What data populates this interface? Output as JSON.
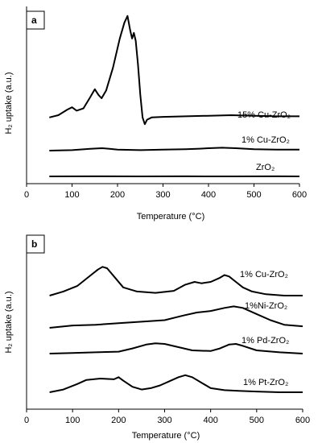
{
  "chart_data": [
    {
      "type": "line",
      "panel_label": "a",
      "xlabel": "Temperature (°C)",
      "ylabel": "H₂ uptake (a.u.)",
      "xlim": [
        0,
        600
      ],
      "xticks": [
        0,
        100,
        200,
        300,
        400,
        500,
        600
      ],
      "grid": false,
      "legend": "inline labels at right end of each trace",
      "series": [
        {
          "name": "15% Cu-ZrO₂",
          "x": [
            50,
            70,
            90,
            100,
            110,
            125,
            140,
            150,
            158,
            165,
            175,
            190,
            205,
            215,
            222,
            228,
            232,
            236,
            240,
            245,
            250,
            255,
            260,
            265,
            275,
            300,
            350,
            400,
            450,
            500,
            550,
            600
          ],
          "y": [
            0.08,
            0.1,
            0.15,
            0.17,
            0.14,
            0.16,
            0.26,
            0.33,
            0.28,
            0.25,
            0.32,
            0.52,
            0.78,
            0.92,
            0.98,
            0.85,
            0.78,
            0.83,
            0.76,
            0.55,
            0.28,
            0.08,
            0.02,
            0.06,
            0.08,
            0.085,
            0.09,
            0.095,
            0.1,
            0.095,
            0.09,
            0.09
          ]
        },
        {
          "name": "1% Cu-ZrO₂",
          "x": [
            50,
            100,
            140,
            165,
            180,
            200,
            250,
            300,
            350,
            380,
            400,
            430,
            460,
            500,
            550,
            600
          ],
          "y": [
            0.0,
            0.005,
            0.018,
            0.025,
            0.02,
            0.01,
            0.005,
            0.01,
            0.015,
            0.02,
            0.025,
            0.03,
            0.025,
            0.015,
            0.01,
            0.01
          ]
        },
        {
          "name": "ZrO₂",
          "x": [
            50,
            150,
            250,
            350,
            450,
            550,
            600
          ],
          "y": [
            0.0,
            0.001,
            0.0,
            0.001,
            0.0,
            0.001,
            0.0
          ]
        }
      ]
    },
    {
      "type": "line",
      "panel_label": "b",
      "xlabel": "Temperature (°C)",
      "ylabel": "H₂ uptake (a.u.)",
      "xlim": [
        0,
        600
      ],
      "xticks": [
        0,
        100,
        200,
        300,
        400,
        500,
        600
      ],
      "grid": false,
      "legend": "inline labels at right end of each trace",
      "series": [
        {
          "name": "1% Cu-ZrO₂",
          "x": [
            50,
            80,
            110,
            140,
            155,
            165,
            175,
            190,
            210,
            240,
            280,
            320,
            345,
            365,
            380,
            400,
            420,
            430,
            440,
            455,
            470,
            490,
            520,
            560,
            600
          ],
          "y": [
            0.0,
            0.06,
            0.14,
            0.3,
            0.38,
            0.42,
            0.4,
            0.28,
            0.12,
            0.06,
            0.04,
            0.07,
            0.16,
            0.2,
            0.18,
            0.2,
            0.26,
            0.3,
            0.28,
            0.2,
            0.12,
            0.06,
            0.02,
            0.0,
            0.0
          ]
        },
        {
          "name": "1%Ni-ZrO₂",
          "x": [
            50,
            100,
            150,
            200,
            250,
            300,
            340,
            370,
            400,
            430,
            450,
            470,
            500,
            530,
            560,
            600
          ],
          "y": [
            0.0,
            0.03,
            0.04,
            0.06,
            0.08,
            0.1,
            0.16,
            0.2,
            0.22,
            0.26,
            0.28,
            0.26,
            0.18,
            0.1,
            0.04,
            0.02
          ]
        },
        {
          "name": "1% Pd-ZrO₂",
          "x": [
            50,
            100,
            150,
            200,
            230,
            260,
            280,
            300,
            330,
            360,
            400,
            420,
            440,
            455,
            470,
            500,
            550,
            600
          ],
          "y": [
            0.0,
            0.01,
            0.02,
            0.03,
            0.08,
            0.14,
            0.16,
            0.15,
            0.1,
            0.05,
            0.04,
            0.08,
            0.14,
            0.15,
            0.12,
            0.05,
            0.02,
            0.0
          ]
        },
        {
          "name": "1% Pt-ZrO₂",
          "x": [
            50,
            80,
            110,
            130,
            160,
            190,
            200,
            210,
            230,
            250,
            270,
            290,
            310,
            330,
            345,
            360,
            380,
            400,
            430,
            460,
            500,
            550,
            600
          ],
          "y": [
            0.0,
            0.04,
            0.12,
            0.18,
            0.2,
            0.19,
            0.22,
            0.17,
            0.08,
            0.04,
            0.06,
            0.1,
            0.16,
            0.22,
            0.25,
            0.22,
            0.14,
            0.06,
            0.03,
            0.02,
            0.01,
            0.0,
            0.0
          ]
        }
      ]
    }
  ]
}
